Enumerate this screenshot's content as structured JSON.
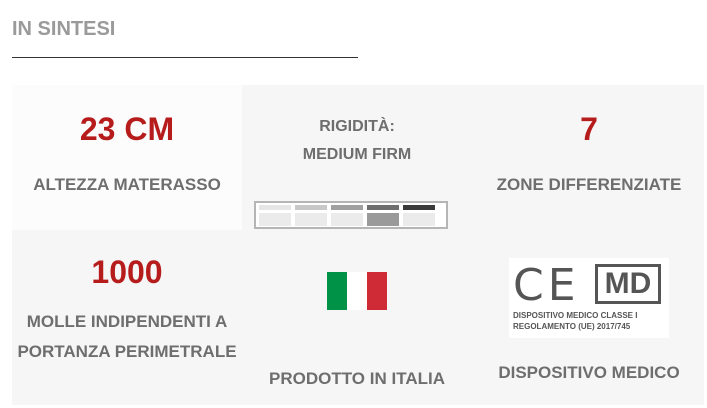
{
  "section_title": "IN SINTESI",
  "cells": [
    {
      "value": "23 CM",
      "label": "ALTEZZA MATERASSO"
    },
    {
      "label_line1": "RIGIDITÀ:",
      "label_line2": "MEDIUM FIRM"
    },
    {
      "value": "7",
      "label": "ZONE DIFFERENZIATE"
    },
    {
      "value": "1000",
      "label_line1": "MOLLE INDIPENDENTI A",
      "label_line2": "PORTANZA PERIMETRALE"
    },
    {
      "label": "PRODOTTO IN ITALIA"
    },
    {
      "label": "DISPOSITIVO MEDICO",
      "logo_text": "CE MD",
      "logo_line1": "DISPOSITIVO MEDICO CLASSE I",
      "logo_line2": "REGOLAMENTO (UE) 2017/745"
    }
  ],
  "rigidity": {
    "levels": 5,
    "selected": 4,
    "scale_colors": [
      "#e6e6e6",
      "#c8c8c8",
      "#a0a0a0",
      "#6e6e6e",
      "#3a3a3a"
    ]
  },
  "flag_colors": [
    "#009246",
    "#ffffff",
    "#ce2b37"
  ],
  "accent": "#b71c1c"
}
